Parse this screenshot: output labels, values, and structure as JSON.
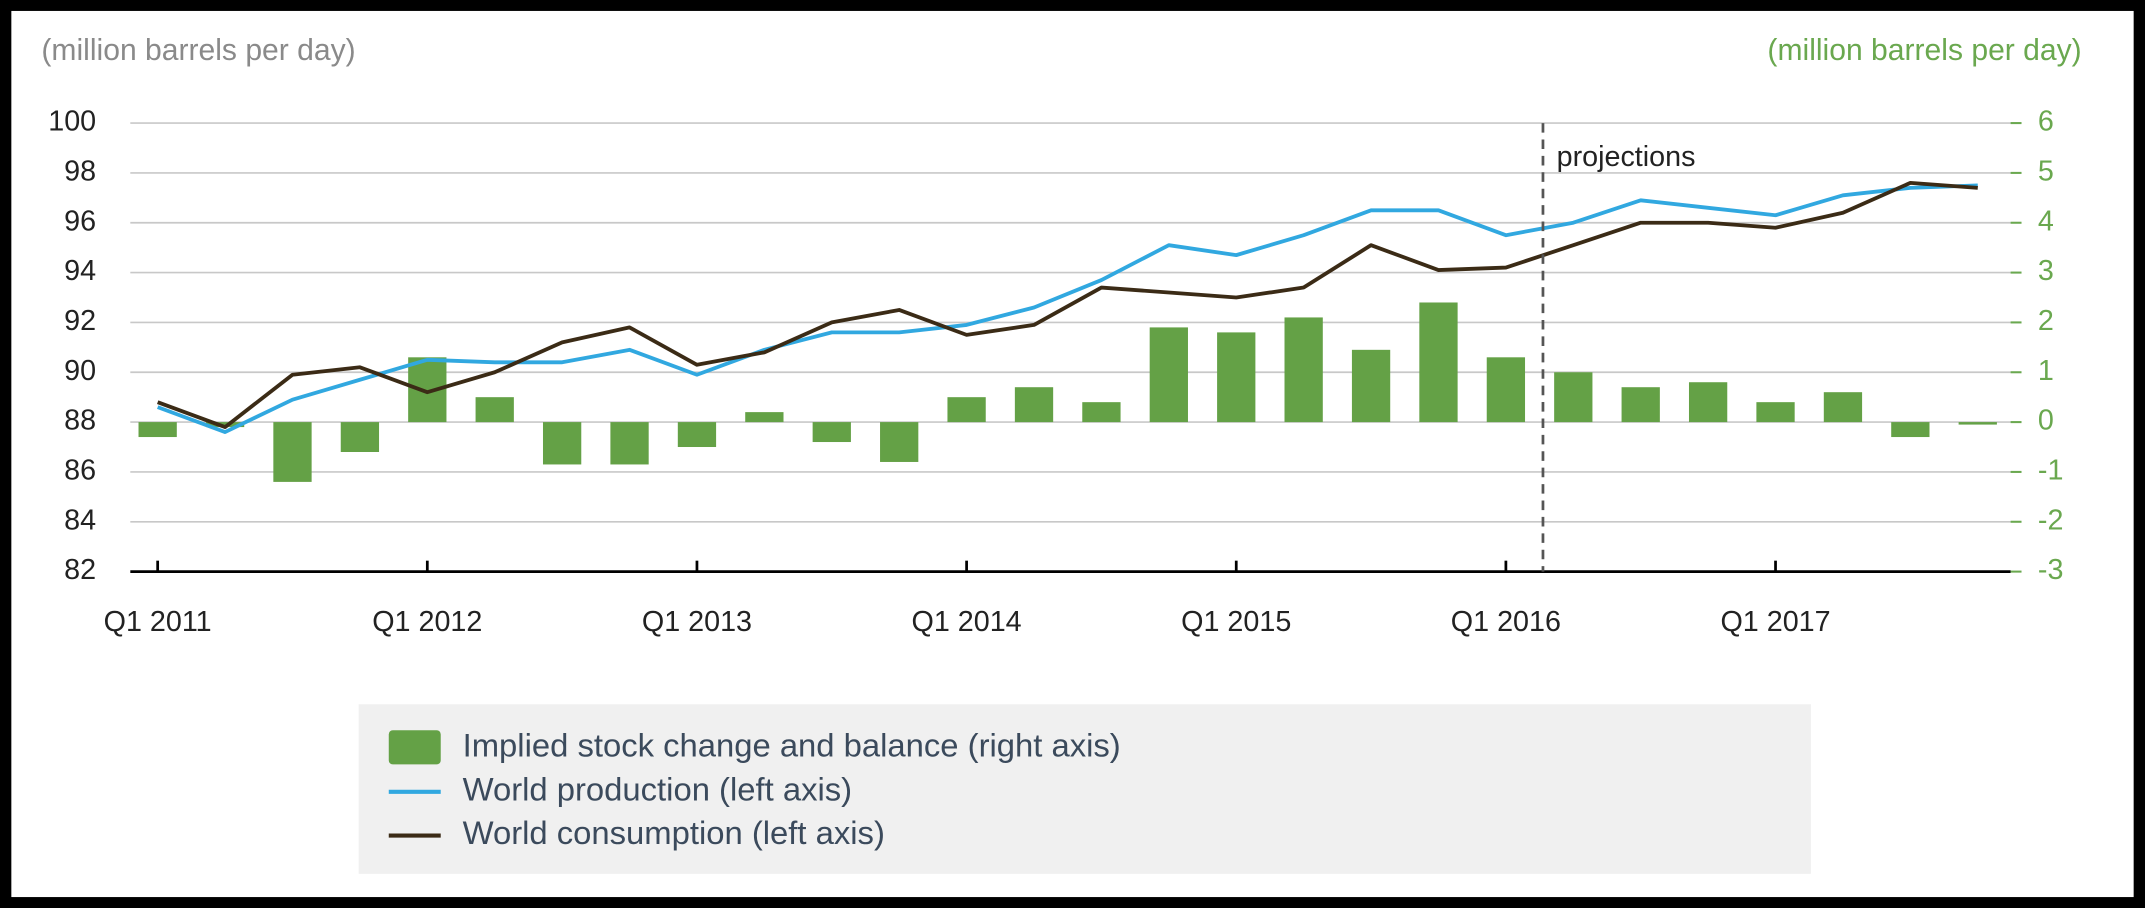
{
  "chart_data": {
    "type": "bar_line",
    "y_label": "(million barrels per day)",
    "y2_label": "(million barrels per day)",
    "annotations": [
      "projections"
    ],
    "categories": [
      "Q1 2011",
      null,
      null,
      null,
      "Q1 2012",
      null,
      null,
      null,
      "Q1 2013",
      null,
      null,
      null,
      "Q1 2014",
      null,
      null,
      null,
      "Q1 2015",
      null,
      null,
      null,
      "Q1 2016",
      null,
      null,
      null,
      "Q1 2017",
      null,
      null,
      null
    ],
    "ylim": [
      82,
      100
    ],
    "yticks": [
      82,
      84,
      86,
      88,
      90,
      92,
      94,
      96,
      98,
      100
    ],
    "y2lim": [
      -3,
      6
    ],
    "y2ticks": [
      -3,
      -2,
      -1,
      0,
      1,
      2,
      3,
      4,
      5,
      6
    ],
    "grid": true,
    "series": [
      {
        "name": "Implied stock change and balance (right axis)",
        "type": "bar",
        "axis": "y2",
        "color": "#64a146",
        "values": [
          -0.3,
          -0.1,
          -1.2,
          -0.6,
          1.3,
          0.5,
          -0.85,
          -0.85,
          -0.5,
          0.2,
          -0.4,
          -0.8,
          0.5,
          0.7,
          0.4,
          1.9,
          1.8,
          2.1,
          1.45,
          2.4,
          1.3,
          1.0,
          0.7,
          0.8,
          0.4,
          0.6,
          -0.3,
          -0.05
        ]
      },
      {
        "name": "World production (left axis)",
        "type": "line",
        "color": "#31a8e0",
        "values": [
          88.6,
          87.6,
          88.9,
          89.7,
          90.5,
          90.4,
          90.4,
          90.9,
          89.9,
          90.9,
          91.6,
          91.6,
          91.9,
          92.6,
          93.7,
          95.1,
          94.7,
          95.5,
          96.5,
          96.5,
          95.5,
          96.0,
          96.9,
          96.6,
          96.3,
          97.1,
          97.4,
          97.5
        ]
      },
      {
        "name": "World consumption (left axis)",
        "type": "line",
        "color": "#3b2b16",
        "values": [
          88.8,
          87.8,
          89.9,
          90.2,
          89.2,
          90.0,
          91.2,
          91.8,
          90.3,
          90.8,
          92.0,
          92.5,
          91.5,
          91.9,
          93.4,
          93.2,
          93.0,
          93.4,
          95.1,
          94.1,
          94.2,
          95.1,
          96.0,
          96.0,
          95.8,
          96.4,
          97.6,
          97.4
        ]
      }
    ]
  }
}
